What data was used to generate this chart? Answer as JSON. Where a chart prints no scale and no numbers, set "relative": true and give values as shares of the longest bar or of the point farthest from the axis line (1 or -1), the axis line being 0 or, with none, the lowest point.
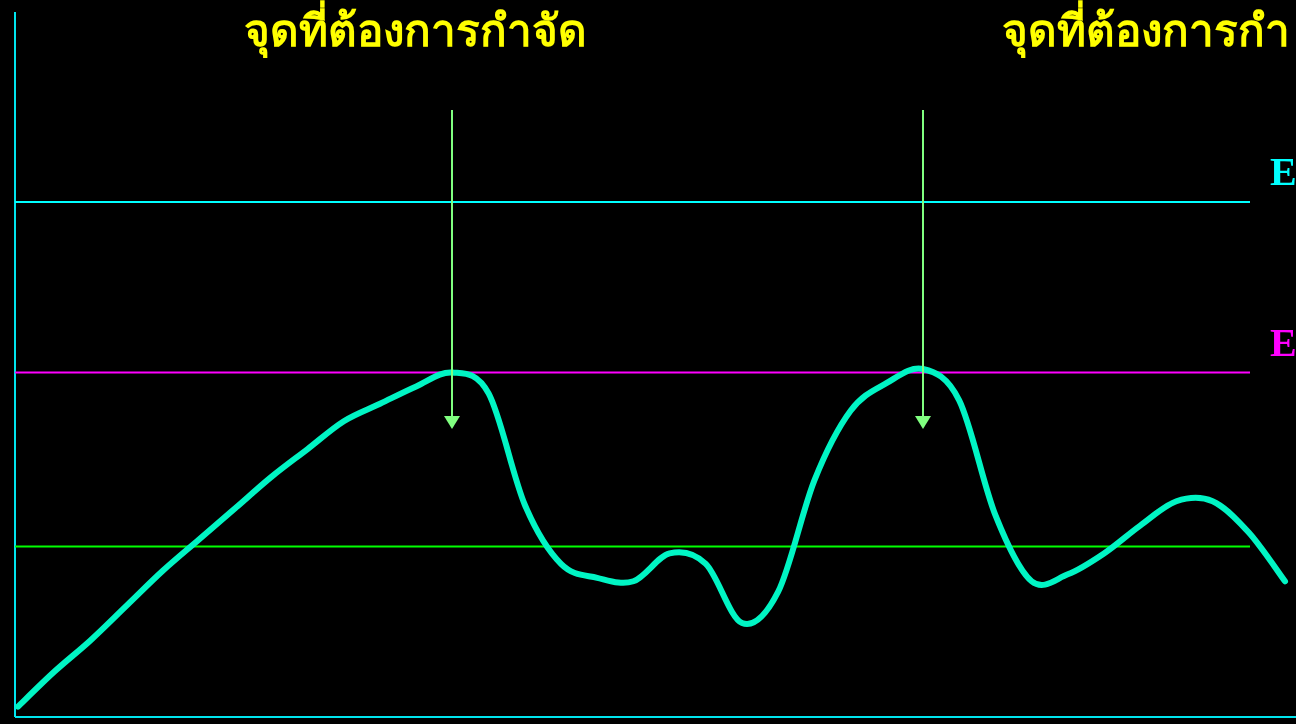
{
  "chart_data": {
    "type": "line",
    "relative": true,
    "categories": [
      null,
      null,
      null,
      null,
      null,
      null,
      null,
      null,
      null,
      null,
      null,
      null,
      null,
      null,
      null,
      null,
      null,
      null,
      null,
      null,
      null,
      null,
      null,
      null,
      null,
      null,
      null,
      null,
      null,
      null,
      null,
      null,
      null,
      null,
      null,
      null
    ],
    "series": [
      {
        "color": "#00f5c4",
        "values": [
          0.03,
          0.13,
          0.22,
          0.32,
          0.42,
          0.51,
          0.6,
          0.69,
          0.77,
          0.85,
          0.9,
          0.95,
          0.99,
          0.93,
          0.61,
          0.44,
          0.4,
          0.39,
          0.47,
          0.44,
          0.27,
          0.36,
          0.68,
          0.88,
          0.96,
          1,
          0.91,
          0.58,
          0.39,
          0.41,
          0.47,
          0.55,
          0.62,
          0.62,
          0.53,
          0.39
        ]
      }
    ],
    "ref_lines": [
      {
        "axis": "y",
        "value": 1.48,
        "label": "E",
        "color": "#00ffff"
      },
      {
        "axis": "y",
        "value": 0.99,
        "label": "E",
        "color": "#ff00ff"
      },
      {
        "axis": "y",
        "value": 0.49,
        "color": "#00ff00"
      }
    ],
    "annotations": [
      "จุดที่ต้องการกำจัด",
      "จุดที่ต้องการกำ"
    ],
    "marker": "none"
  }
}
